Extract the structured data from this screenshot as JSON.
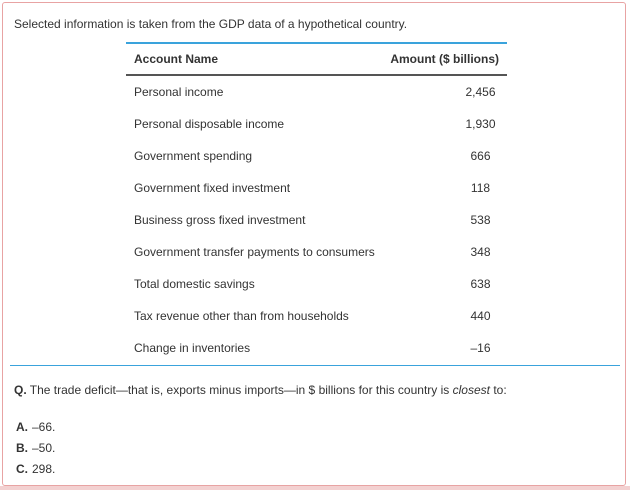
{
  "intro": "Selected information is taken from the GDP data of a hypothetical country.",
  "table": {
    "headers": {
      "name": "Account Name",
      "amount": "Amount ($ billions)"
    },
    "rows": [
      {
        "name": "Personal income",
        "amount": "2,456"
      },
      {
        "name": "Personal disposable income",
        "amount": "1,930"
      },
      {
        "name": "Government spending",
        "amount": "666"
      },
      {
        "name": "Government fixed investment",
        "amount": "118"
      },
      {
        "name": "Business gross fixed investment",
        "amount": "538"
      },
      {
        "name": "Government transfer payments to consumers",
        "amount": "348"
      },
      {
        "name": "Total domestic savings",
        "amount": "638"
      },
      {
        "name": "Tax revenue other than from households",
        "amount": "440"
      },
      {
        "name": "Change in inventories",
        "amount": "–16"
      }
    ]
  },
  "question": {
    "label": "Q.",
    "text_before": " The trade deficit—that is, exports minus imports—in $ billions for this country is ",
    "emphasis": "closest",
    "text_after": " to:"
  },
  "options": [
    {
      "letter": "A.",
      "text": "–66."
    },
    {
      "letter": "B.",
      "text": "–50."
    },
    {
      "letter": "C.",
      "text": "298."
    }
  ],
  "colors": {
    "accent": "#3aa3dc",
    "card_border": "#e8a3a3",
    "header_rule": "#555555"
  }
}
